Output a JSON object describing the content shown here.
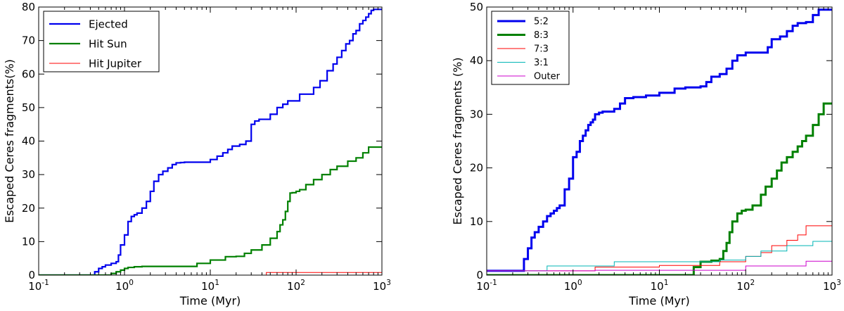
{
  "chart_data": [
    {
      "type": "line",
      "xscale": "log",
      "xlim": [
        0.1,
        1000
      ],
      "ylim": [
        0,
        80
      ],
      "xlabel": "Time (Myr)",
      "ylabel": "Escaped Ceres fragments(%)",
      "xticks": [
        {
          "value": 0.1,
          "base": "10",
          "exp": "-1"
        },
        {
          "value": 1,
          "base": "10",
          "exp": "0"
        },
        {
          "value": 10,
          "base": "10",
          "exp": "1"
        },
        {
          "value": 100,
          "base": "10",
          "exp": "2"
        },
        {
          "value": 1000,
          "base": "10",
          "exp": "3"
        }
      ],
      "yticks": [
        {
          "value": 0,
          "label": "0"
        },
        {
          "value": 10,
          "label": "10"
        },
        {
          "value": 20,
          "label": "20"
        },
        {
          "value": 30,
          "label": "30"
        },
        {
          "value": 40,
          "label": "40"
        },
        {
          "value": 50,
          "label": "50"
        },
        {
          "value": 60,
          "label": "60"
        },
        {
          "value": 70,
          "label": "70"
        },
        {
          "value": 80,
          "label": "80"
        }
      ],
      "legend_position": "top-left",
      "series": [
        {
          "name": "Ejected",
          "color": "#0000ee",
          "width": 2.2,
          "x": [
            0.1,
            0.42,
            0.45,
            0.5,
            0.55,
            0.6,
            0.7,
            0.8,
            0.85,
            0.9,
            1.0,
            1.1,
            1.2,
            1.3,
            1.4,
            1.6,
            1.8,
            2.0,
            2.2,
            2.5,
            2.8,
            3.2,
            3.6,
            4.0,
            4.5,
            5.0,
            7.0,
            10,
            12,
            14,
            16,
            18,
            22,
            26,
            30,
            33,
            37,
            42,
            50,
            60,
            70,
            80,
            90,
            110,
            130,
            160,
            190,
            230,
            270,
            300,
            340,
            380,
            420,
            460,
            500,
            550,
            600,
            650,
            700,
            750,
            800,
            1000
          ],
          "y": [
            0,
            0,
            1,
            2,
            2.5,
            3,
            3.5,
            4,
            6,
            9,
            12,
            16,
            17.5,
            18,
            18.5,
            20,
            22,
            25,
            28,
            30,
            31,
            32,
            33,
            33.5,
            33.6,
            33.7,
            33.7,
            34.5,
            35.5,
            36.5,
            37.5,
            38.5,
            39,
            40,
            45,
            46,
            46.5,
            46.5,
            48,
            50,
            51,
            52,
            52,
            54,
            54,
            56,
            58,
            61,
            63,
            65,
            67,
            69,
            70,
            72,
            73,
            75,
            76,
            77,
            78,
            79,
            79.3,
            79.3
          ]
        },
        {
          "name": "Hit Sun",
          "color": "#008000",
          "width": 2.2,
          "x": [
            0.1,
            0.62,
            0.7,
            0.8,
            0.9,
            1.0,
            1.1,
            1.3,
            1.6,
            2.0,
            5.0,
            7.0,
            10,
            15,
            20,
            25,
            30,
            40,
            50,
            60,
            65,
            70,
            75,
            80,
            85,
            90,
            100,
            110,
            130,
            160,
            200,
            250,
            300,
            400,
            500,
            600,
            700,
            1000
          ],
          "y": [
            0,
            0,
            0.5,
            1,
            1.5,
            2,
            2.3,
            2.5,
            2.6,
            2.6,
            2.6,
            3.5,
            4.5,
            5.5,
            5.6,
            6.5,
            7.5,
            9,
            11,
            13,
            15,
            16.5,
            19,
            22,
            24.5,
            24.6,
            25,
            25.5,
            27,
            28.5,
            30,
            31.5,
            32.5,
            34,
            35,
            36.5,
            38.2,
            38.2
          ]
        },
        {
          "name": "Hit Jupiter",
          "color": "#ff0000",
          "width": 1,
          "x": [
            0.1,
            42,
            45,
            1000
          ],
          "y": [
            0,
            0,
            0.8,
            0.8
          ]
        }
      ]
    },
    {
      "type": "line",
      "xscale": "log",
      "xlim": [
        0.1,
        1000
      ],
      "ylim": [
        0,
        50
      ],
      "xlabel": "Time (Myr)",
      "ylabel": "Escaped Ceres fragments (%)",
      "xticks": [
        {
          "value": 0.1,
          "base": "10",
          "exp": "-1"
        },
        {
          "value": 1,
          "base": "10",
          "exp": "0"
        },
        {
          "value": 10,
          "base": "10",
          "exp": "1"
        },
        {
          "value": 100,
          "base": "10",
          "exp": "2"
        },
        {
          "value": 1000,
          "base": "10",
          "exp": "3"
        }
      ],
      "yticks": [
        {
          "value": 0,
          "label": "0"
        },
        {
          "value": 10,
          "label": "10"
        },
        {
          "value": 20,
          "label": "20"
        },
        {
          "value": 30,
          "label": "30"
        },
        {
          "value": 40,
          "label": "40"
        },
        {
          "value": 50,
          "label": "50"
        }
      ],
      "legend_position": "top-left",
      "series": [
        {
          "name": "5:2",
          "color": "#0000ee",
          "width": 3,
          "x": [
            0.1,
            0.25,
            0.27,
            0.3,
            0.33,
            0.36,
            0.4,
            0.45,
            0.5,
            0.55,
            0.6,
            0.65,
            0.7,
            0.8,
            0.9,
            1.0,
            1.1,
            1.2,
            1.3,
            1.4,
            1.5,
            1.6,
            1.7,
            1.8,
            2.0,
            2.2,
            2.5,
            3.0,
            3.5,
            4.0,
            5.0,
            7.0,
            10,
            15,
            20,
            30,
            35,
            40,
            50,
            60,
            70,
            80,
            100,
            150,
            180,
            200,
            250,
            300,
            350,
            400,
            500,
            600,
            700,
            1000
          ],
          "y": [
            0.8,
            0.8,
            3,
            5,
            7,
            8,
            9,
            10,
            11,
            11.5,
            12,
            12.5,
            13,
            16,
            18,
            22,
            23,
            25,
            26,
            27,
            28,
            28.5,
            29,
            30,
            30.3,
            30.5,
            30.5,
            31,
            32,
            33,
            33.2,
            33.5,
            34,
            34.8,
            35,
            35.2,
            36,
            37,
            37.5,
            38.5,
            40,
            41,
            41.5,
            41.5,
            42.5,
            44,
            44.5,
            45.5,
            46.5,
            47,
            47.2,
            48.5,
            49.5,
            49.5
          ]
        },
        {
          "name": "8:3",
          "color": "#008000",
          "width": 3,
          "x": [
            0.1,
            22,
            25,
            30,
            40,
            50,
            55,
            60,
            65,
            70,
            80,
            90,
            100,
            120,
            150,
            170,
            200,
            230,
            260,
            300,
            350,
            400,
            450,
            500,
            600,
            700,
            800,
            1000
          ],
          "y": [
            0,
            0,
            1.5,
            2.5,
            2.7,
            3,
            4.5,
            6,
            8,
            10,
            11.5,
            12,
            12.2,
            13,
            15,
            16.5,
            18,
            19.5,
            21,
            22,
            23,
            24,
            25,
            26,
            28,
            30,
            32,
            32
          ]
        },
        {
          "name": "7:3",
          "color": "#ff0000",
          "width": 1,
          "x": [
            0.1,
            1.8,
            10,
            50,
            100,
            150,
            200,
            300,
            400,
            500,
            1000
          ],
          "y": [
            0.8,
            1.5,
            1.8,
            2.5,
            3.5,
            4.2,
            5.5,
            6.5,
            7.5,
            9.2,
            9.2
          ]
        },
        {
          "name": "3:1",
          "color": "#00b5b5",
          "width": 1,
          "x": [
            0.1,
            0.5,
            3.0,
            50,
            100,
            150,
            300,
            600,
            1000
          ],
          "y": [
            0.8,
            1.7,
            2.5,
            2.8,
            3.5,
            4.5,
            5.5,
            6.3,
            6.3
          ]
        },
        {
          "name": "Outer",
          "color": "#cc00cc",
          "width": 1,
          "x": [
            0.1,
            1.8,
            100,
            500,
            1000
          ],
          "y": [
            0.8,
            0.9,
            1.7,
            2.6,
            2.6
          ]
        }
      ]
    }
  ]
}
